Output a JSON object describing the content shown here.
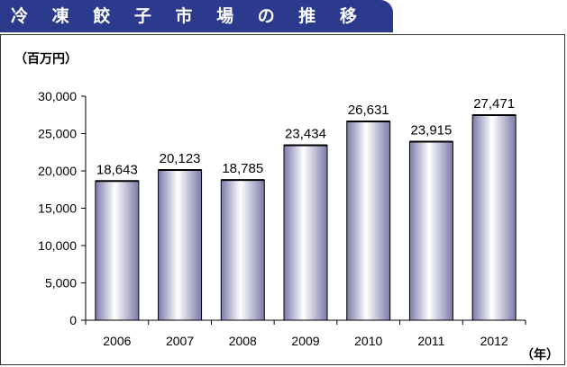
{
  "title": "冷 凍 餃 子 市 場 の 推 移",
  "y_unit": "（百万円）",
  "x_unit": "（年）",
  "colors": {
    "title_bg": "#2b3a8c",
    "bar_edge": "#000000",
    "bar_light": "#ffffff",
    "bar_dark": "#7a7aaa"
  },
  "chart_data": {
    "type": "bar",
    "categories": [
      "2006",
      "2007",
      "2008",
      "2009",
      "2010",
      "2011",
      "2012"
    ],
    "values": [
      18643,
      20123,
      18785,
      23434,
      26631,
      23915,
      27471
    ],
    "value_labels": [
      "18,643",
      "20,123",
      "18,785",
      "23,434",
      "26,631",
      "23,915",
      "27,471"
    ],
    "ylim": [
      0,
      30000
    ],
    "yticks": [
      0,
      5000,
      10000,
      15000,
      20000,
      25000,
      30000
    ],
    "ytick_labels": [
      "0",
      "5,000",
      "10,000",
      "15,000",
      "20,000",
      "25,000",
      "30,000"
    ],
    "grid": false,
    "legend": "none"
  }
}
